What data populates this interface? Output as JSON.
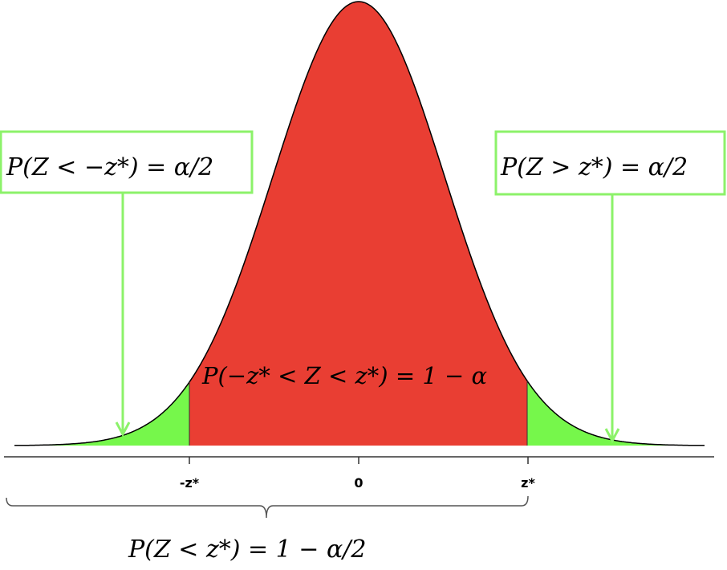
{
  "colors": {
    "center_region": "#E93E33",
    "tail_regions": "#76F74B",
    "curve": "#000000",
    "label_box": "#8CF26A"
  },
  "distribution": {
    "type": "standard normal density",
    "alpha_shown": "alpha/2 each tail"
  },
  "axis": {
    "ticks": [
      "-z*",
      "0",
      "z*"
    ]
  },
  "labels": {
    "left_tail": "P(Z < −z*) = α/2",
    "right_tail": "P(Z > z*) = α/2",
    "center": "P(−z* < Z < z*) = 1 − α",
    "cumulative": "P(Z < z*) = 1 − α/2"
  }
}
